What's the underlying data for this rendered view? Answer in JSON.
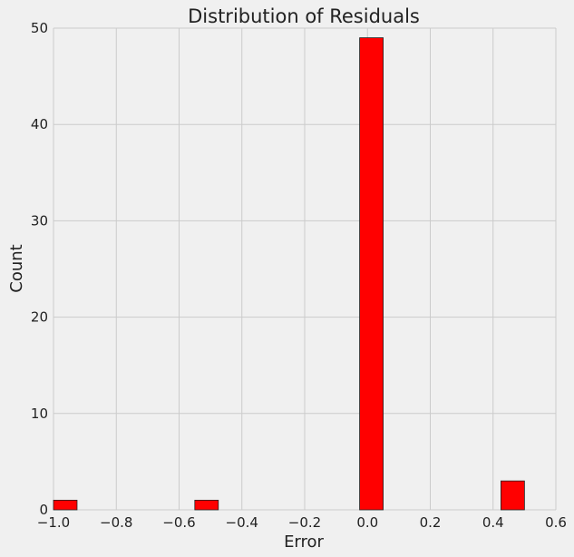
{
  "chart_data": {
    "type": "bar",
    "title": "Distribution of Residuals",
    "xlabel": "Error",
    "ylabel": "Count",
    "xlim": [
      -1.0,
      0.6
    ],
    "ylim": [
      0,
      50
    ],
    "xticks": [
      -1.0,
      -0.8,
      -0.6,
      -0.4,
      -0.2,
      0.0,
      0.2,
      0.4,
      0.6
    ],
    "xtick_labels": [
      "−1.0",
      "−0.8",
      "−0.6",
      "−0.4",
      "−0.2",
      "0.0",
      "0.2",
      "0.4",
      "0.6"
    ],
    "yticks": [
      0,
      10,
      20,
      30,
      40,
      50
    ],
    "ytick_labels": [
      "0",
      "10",
      "20",
      "30",
      "40",
      "50"
    ],
    "grid": true,
    "bin_width": 0.075,
    "bars": [
      {
        "x_start": -1.0,
        "x_end": -0.925,
        "value": 1
      },
      {
        "x_start": -0.55,
        "x_end": -0.475,
        "value": 1
      },
      {
        "x_start": -0.025,
        "x_end": 0.05,
        "value": 49
      },
      {
        "x_start": 0.425,
        "x_end": 0.5,
        "value": 3
      }
    ],
    "colors": {
      "bar": "#ff0000",
      "background": "#f0f0f0",
      "grid": "#cbcbcb"
    }
  }
}
